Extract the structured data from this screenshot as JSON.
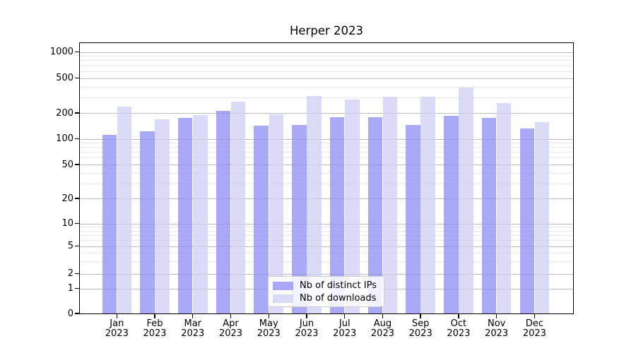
{
  "chart_data": {
    "type": "bar",
    "title": "Herper 2023",
    "categories": [
      "Jan 2023",
      "Feb 2023",
      "Mar 2023",
      "Apr 2023",
      "May 2023",
      "Jun 2023",
      "Jul 2023",
      "Aug 2023",
      "Sep 2023",
      "Oct 2023",
      "Nov 2023",
      "Dec 2023"
    ],
    "series": [
      {
        "name": "Nb of distinct IPs",
        "color": "rgba(140,140,246,0.75)",
        "values": [
          110,
          122,
          176,
          212,
          142,
          146,
          177,
          177,
          144,
          184,
          175,
          131
        ]
      },
      {
        "name": "Nb of downloads",
        "color": "rgba(207,207,245,0.75)",
        "values": [
          235,
          170,
          190,
          268,
          193,
          314,
          286,
          308,
          305,
          390,
          260,
          156
        ]
      }
    ],
    "xlabel": "",
    "ylabel": "",
    "yscale": "asinh-log",
    "ylim": [
      0,
      1270
    ],
    "y_major_ticks": [
      0,
      1,
      2,
      5,
      10,
      20,
      50,
      100,
      200,
      500,
      1000
    ],
    "y_minor_gridlines": [
      3,
      4,
      6,
      7,
      8,
      9,
      30,
      40,
      60,
      70,
      80,
      90,
      300,
      400,
      600,
      700,
      800,
      900
    ],
    "grid": true,
    "legend_position": "lower center"
  },
  "colors": {
    "background": "#ffffff",
    "grid_major": "#bcbcbc",
    "grid_minor": "#e9e9e9",
    "frame": "#000000",
    "text": "#000000"
  }
}
